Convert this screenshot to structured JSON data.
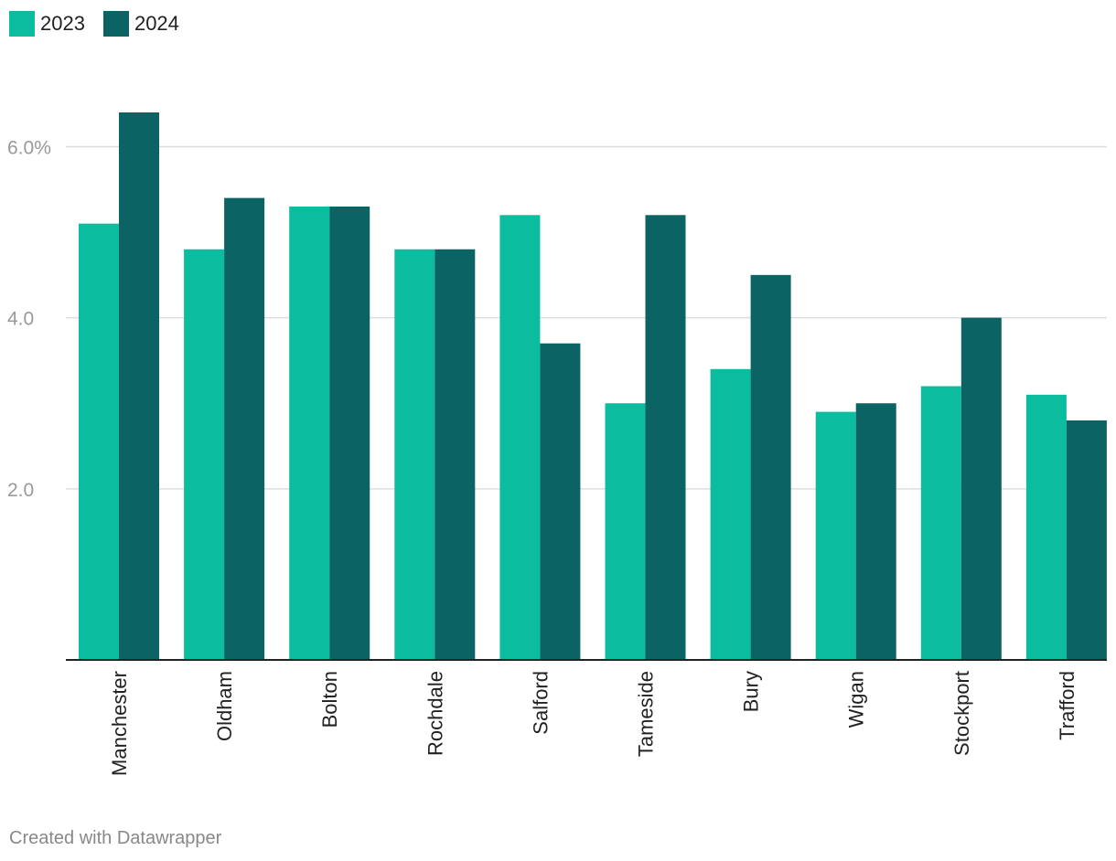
{
  "legend": [
    {
      "label": "2023",
      "color": "#0cbc9f"
    },
    {
      "label": "2024",
      "color": "#0b6463"
    }
  ],
  "footer": "Created with Datawrapper",
  "chart_data": {
    "type": "bar",
    "categories": [
      "Manchester",
      "Oldham",
      "Bolton",
      "Rochdale",
      "Salford",
      "Tameside",
      "Bury",
      "Wigan",
      "Stockport",
      "Trafford"
    ],
    "series": [
      {
        "name": "2023",
        "color": "#0cbc9f",
        "values": [
          5.1,
          4.8,
          5.3,
          4.8,
          5.2,
          3.0,
          3.4,
          2.9,
          3.2,
          3.1
        ]
      },
      {
        "name": "2024",
        "color": "#0b6463",
        "values": [
          6.4,
          5.4,
          5.3,
          4.8,
          3.7,
          5.2,
          4.5,
          3.0,
          4.0,
          2.8
        ]
      }
    ],
    "yticks": [
      {
        "value": 2,
        "label": "2.0"
      },
      {
        "value": 4,
        "label": "4.0"
      },
      {
        "value": 6,
        "label": "6.0%"
      }
    ],
    "ylim": [
      0,
      6.4
    ],
    "grid": true,
    "legend_position": "top-left"
  }
}
